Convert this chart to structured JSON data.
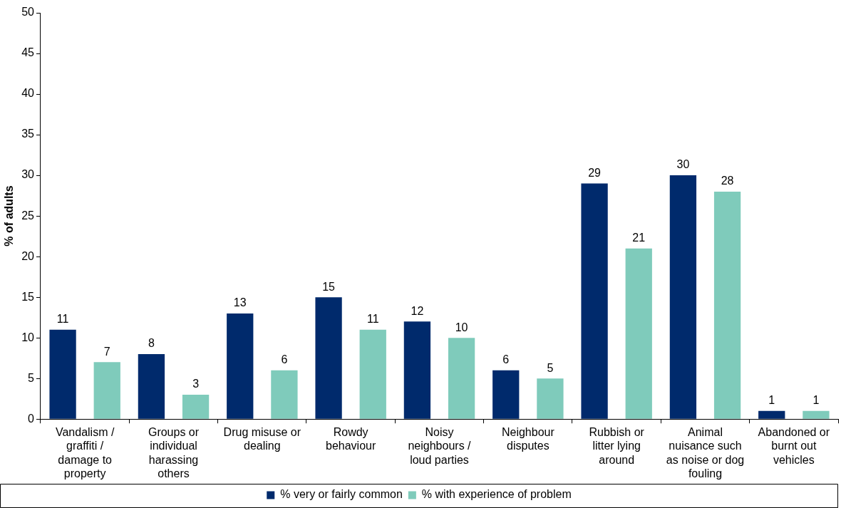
{
  "chart_data": {
    "type": "bar",
    "ylabel": "% of adults",
    "categories": [
      "Vandalism / graffiti / damage to property",
      "Groups or individual harassing others",
      "Drug misuse or dealing",
      "Rowdy behaviour",
      "Noisy neighbours / loud parties",
      "Neighbour disputes",
      "Rubbish or litter lying around",
      "Animal nuisance such as noise or dog fouling",
      "Abandoned or burnt out vehicles"
    ],
    "series": [
      {
        "name": "% very or fairly common",
        "color": "#002a6c",
        "values": [
          11,
          8,
          13,
          15,
          12,
          6,
          29,
          30,
          1
        ]
      },
      {
        "name": "% with experience of problem",
        "color": "#7fcbbb",
        "values": [
          7,
          3,
          6,
          11,
          10,
          5,
          21,
          28,
          1
        ]
      }
    ],
    "ylim": [
      0,
      50
    ],
    "yticks": [
      0,
      5,
      10,
      15,
      20,
      25,
      30,
      35,
      40,
      45,
      50
    ],
    "grid": false,
    "legend": "bottom",
    "data_labels": true
  }
}
